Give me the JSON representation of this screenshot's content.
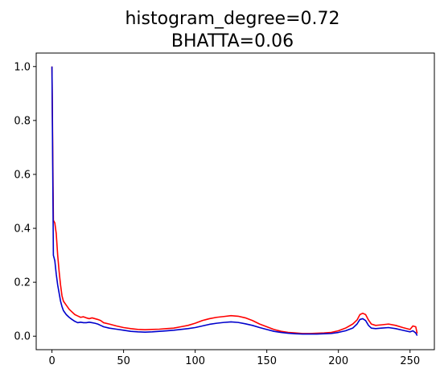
{
  "chart_data": {
    "type": "line",
    "title_lines": [
      "histogram_degree=0.72",
      "BHATTA=0.06"
    ],
    "xlabel": "",
    "ylabel": "",
    "xlim": [
      -11,
      267
    ],
    "ylim": [
      -0.05,
      1.05
    ],
    "x_ticks": [
      0,
      50,
      100,
      150,
      200,
      250
    ],
    "y_ticks": [
      0.0,
      0.2,
      0.4,
      0.6,
      0.8,
      1.0
    ],
    "x_tick_labels": [
      "0",
      "50",
      "100",
      "150",
      "200",
      "250"
    ],
    "y_tick_labels": [
      "0.0",
      "0.2",
      "0.4",
      "0.6",
      "0.8",
      "1.0"
    ],
    "grid": false,
    "legend": "none",
    "series": [
      {
        "color": "#ff0000",
        "points": [
          [
            0,
            1.0
          ],
          [
            1,
            0.43
          ],
          [
            2,
            0.42
          ],
          [
            3,
            0.38
          ],
          [
            4,
            0.3
          ],
          [
            5,
            0.24
          ],
          [
            6,
            0.19
          ],
          [
            7,
            0.15
          ],
          [
            8,
            0.13
          ],
          [
            10,
            0.115
          ],
          [
            12,
            0.1
          ],
          [
            14,
            0.09
          ],
          [
            16,
            0.08
          ],
          [
            18,
            0.075
          ],
          [
            20,
            0.07
          ],
          [
            22,
            0.072
          ],
          [
            24,
            0.068
          ],
          [
            26,
            0.065
          ],
          [
            28,
            0.068
          ],
          [
            30,
            0.065
          ],
          [
            32,
            0.062
          ],
          [
            34,
            0.058
          ],
          [
            36,
            0.05
          ],
          [
            40,
            0.045
          ],
          [
            45,
            0.038
          ],
          [
            50,
            0.032
          ],
          [
            55,
            0.028
          ],
          [
            60,
            0.025
          ],
          [
            65,
            0.024
          ],
          [
            70,
            0.025
          ],
          [
            75,
            0.026
          ],
          [
            80,
            0.028
          ],
          [
            85,
            0.03
          ],
          [
            90,
            0.035
          ],
          [
            95,
            0.04
          ],
          [
            100,
            0.048
          ],
          [
            105,
            0.058
          ],
          [
            110,
            0.065
          ],
          [
            115,
            0.07
          ],
          [
            120,
            0.073
          ],
          [
            125,
            0.076
          ],
          [
            130,
            0.074
          ],
          [
            135,
            0.068
          ],
          [
            140,
            0.058
          ],
          [
            145,
            0.045
          ],
          [
            150,
            0.035
          ],
          [
            155,
            0.025
          ],
          [
            160,
            0.018
          ],
          [
            165,
            0.014
          ],
          [
            170,
            0.012
          ],
          [
            175,
            0.01
          ],
          [
            180,
            0.01
          ],
          [
            185,
            0.011
          ],
          [
            190,
            0.012
          ],
          [
            195,
            0.014
          ],
          [
            200,
            0.02
          ],
          [
            205,
            0.03
          ],
          [
            210,
            0.045
          ],
          [
            213,
            0.06
          ],
          [
            215,
            0.08
          ],
          [
            217,
            0.085
          ],
          [
            219,
            0.08
          ],
          [
            221,
            0.06
          ],
          [
            223,
            0.045
          ],
          [
            226,
            0.04
          ],
          [
            230,
            0.042
          ],
          [
            235,
            0.045
          ],
          [
            240,
            0.04
          ],
          [
            245,
            0.032
          ],
          [
            250,
            0.025
          ],
          [
            252,
            0.038
          ],
          [
            254,
            0.035
          ],
          [
            255,
            0.01
          ]
        ]
      },
      {
        "color": "#0000cc",
        "points": [
          [
            0,
            1.0
          ],
          [
            1,
            0.3
          ],
          [
            2,
            0.28
          ],
          [
            3,
            0.23
          ],
          [
            4,
            0.19
          ],
          [
            5,
            0.16
          ],
          [
            6,
            0.13
          ],
          [
            7,
            0.11
          ],
          [
            8,
            0.095
          ],
          [
            10,
            0.08
          ],
          [
            12,
            0.07
          ],
          [
            14,
            0.062
          ],
          [
            16,
            0.055
          ],
          [
            18,
            0.05
          ],
          [
            20,
            0.052
          ],
          [
            22,
            0.05
          ],
          [
            24,
            0.05
          ],
          [
            26,
            0.052
          ],
          [
            28,
            0.05
          ],
          [
            30,
            0.048
          ],
          [
            32,
            0.045
          ],
          [
            34,
            0.04
          ],
          [
            36,
            0.035
          ],
          [
            40,
            0.03
          ],
          [
            45,
            0.026
          ],
          [
            50,
            0.022
          ],
          [
            55,
            0.018
          ],
          [
            60,
            0.016
          ],
          [
            65,
            0.015
          ],
          [
            70,
            0.016
          ],
          [
            75,
            0.018
          ],
          [
            80,
            0.02
          ],
          [
            85,
            0.022
          ],
          [
            90,
            0.025
          ],
          [
            95,
            0.028
          ],
          [
            100,
            0.032
          ],
          [
            105,
            0.038
          ],
          [
            110,
            0.044
          ],
          [
            115,
            0.048
          ],
          [
            120,
            0.051
          ],
          [
            125,
            0.053
          ],
          [
            130,
            0.051
          ],
          [
            135,
            0.046
          ],
          [
            140,
            0.04
          ],
          [
            145,
            0.032
          ],
          [
            150,
            0.025
          ],
          [
            155,
            0.018
          ],
          [
            160,
            0.014
          ],
          [
            165,
            0.011
          ],
          [
            170,
            0.009
          ],
          [
            175,
            0.008
          ],
          [
            180,
            0.008
          ],
          [
            185,
            0.008
          ],
          [
            190,
            0.009
          ],
          [
            195,
            0.01
          ],
          [
            200,
            0.014
          ],
          [
            205,
            0.02
          ],
          [
            210,
            0.03
          ],
          [
            213,
            0.045
          ],
          [
            215,
            0.062
          ],
          [
            217,
            0.065
          ],
          [
            219,
            0.058
          ],
          [
            221,
            0.04
          ],
          [
            223,
            0.03
          ],
          [
            226,
            0.028
          ],
          [
            230,
            0.03
          ],
          [
            235,
            0.032
          ],
          [
            240,
            0.028
          ],
          [
            245,
            0.022
          ],
          [
            250,
            0.016
          ],
          [
            252,
            0.02
          ],
          [
            254,
            0.012
          ],
          [
            255,
            0.002
          ]
        ]
      }
    ]
  }
}
